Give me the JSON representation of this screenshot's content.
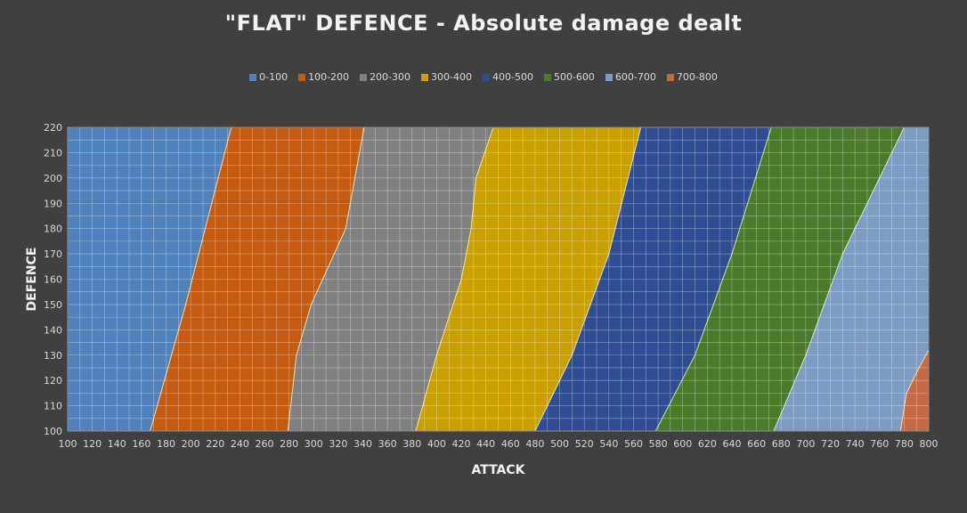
{
  "chart_data": {
    "type": "area",
    "title": "\"FLAT\" DEFENCE - Absolute damage dealt",
    "xlabel": "ATTACK",
    "ylabel": "DEFENCE",
    "xlim": [
      100,
      800
    ],
    "ylim": [
      100,
      220
    ],
    "x_ticks": [
      100,
      120,
      140,
      160,
      180,
      200,
      220,
      240,
      260,
      280,
      300,
      320,
      340,
      360,
      380,
      400,
      420,
      440,
      460,
      480,
      500,
      520,
      540,
      560,
      580,
      600,
      620,
      640,
      660,
      680,
      700,
      720,
      740,
      760,
      780,
      800
    ],
    "y_ticks": [
      100,
      110,
      120,
      130,
      140,
      150,
      160,
      170,
      180,
      190,
      200,
      210,
      220
    ],
    "grid": true,
    "legend_position": "top",
    "series": [
      {
        "name": "0-100",
        "color": "#4f81bd"
      },
      {
        "name": "100-200",
        "color": "#c55a11"
      },
      {
        "name": "200-300",
        "color": "#808080"
      },
      {
        "name": "300-400",
        "color": "#c9a000"
      },
      {
        "name": "400-500",
        "color": "#2e4d93"
      },
      {
        "name": "500-600",
        "color": "#4b7a2a"
      },
      {
        "name": "600-700",
        "color": "#7c9cc4"
      },
      {
        "name": "700-800",
        "color": "#c46a45"
      }
    ],
    "boundaries": [
      {
        "upper_of": "0-100",
        "points": [
          [
            167,
            100
          ],
          [
            196,
            150
          ],
          [
            233,
            220
          ]
        ]
      },
      {
        "upper_of": "100-200",
        "points": [
          [
            279,
            100
          ],
          [
            286,
            130
          ],
          [
            298,
            150
          ],
          [
            326,
            180
          ],
          [
            341,
            220
          ]
        ]
      },
      {
        "upper_of": "200-300",
        "points": [
          [
            383,
            100
          ],
          [
            400,
            130
          ],
          [
            420,
            160
          ],
          [
            428,
            180
          ],
          [
            432,
            200
          ],
          [
            446,
            220
          ]
        ]
      },
      {
        "upper_of": "300-400",
        "points": [
          [
            480,
            100
          ],
          [
            510,
            130
          ],
          [
            540,
            170
          ],
          [
            566,
            220
          ]
        ]
      },
      {
        "upper_of": "400-500",
        "points": [
          [
            578,
            100
          ],
          [
            610,
            130
          ],
          [
            640,
            170
          ],
          [
            672,
            220
          ]
        ]
      },
      {
        "upper_of": "500-600",
        "points": [
          [
            674,
            100
          ],
          [
            700,
            130
          ],
          [
            730,
            170
          ],
          [
            780,
            220
          ]
        ]
      },
      {
        "upper_of": "600-700",
        "points": [
          [
            777,
            100
          ],
          [
            782,
            115
          ],
          [
            790,
            123
          ],
          [
            800,
            132
          ]
        ]
      }
    ]
  }
}
